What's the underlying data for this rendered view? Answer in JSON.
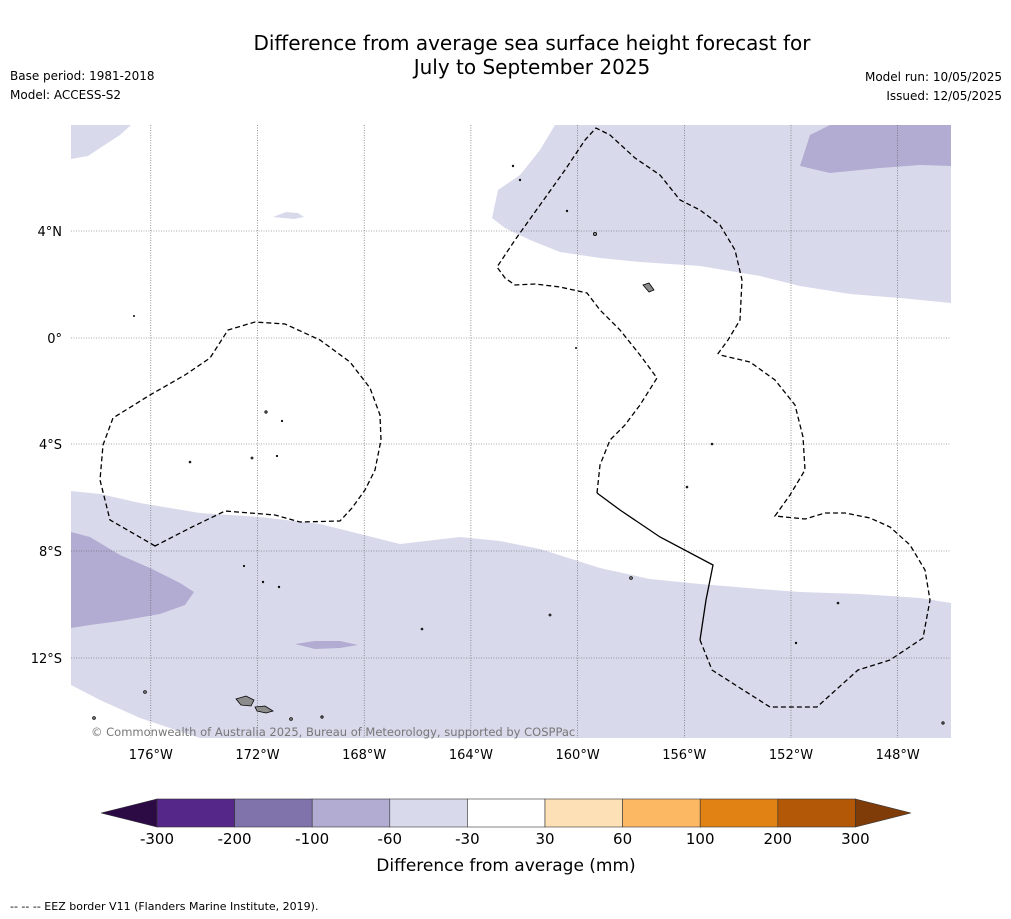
{
  "title": {
    "line1": "Difference from average sea surface height forecast for",
    "line2": "July to September 2025"
  },
  "meta_left": {
    "base_period": "Base period: 1981-2018",
    "model": "Model: ACCESS-S2"
  },
  "meta_right": {
    "model_run": "Model run: 10/05/2025",
    "issued": "Issued: 12/05/2025"
  },
  "map": {
    "lon_range": [
      -179,
      -146
    ],
    "lat_range": [
      -15,
      8
    ],
    "lon_ticks": [
      {
        "value": -176,
        "label": "176°W"
      },
      {
        "value": -172,
        "label": "172°W"
      },
      {
        "value": -168,
        "label": "168°W"
      },
      {
        "value": -164,
        "label": "164°W"
      },
      {
        "value": -160,
        "label": "160°W"
      },
      {
        "value": -156,
        "label": "156°W"
      },
      {
        "value": -152,
        "label": "152°W"
      },
      {
        "value": -148,
        "label": "148°W"
      }
    ],
    "lat_ticks": [
      {
        "value": 4,
        "label": "4°N"
      },
      {
        "value": 0,
        "label": "0°"
      },
      {
        "value": -4,
        "label": "4°S"
      },
      {
        "value": -8,
        "label": "8°S"
      },
      {
        "value": -12,
        "label": "12°S"
      }
    ],
    "copyright": "© Commonwealth of Australia 2025, Bureau of Meteorology, supported by COSPPac",
    "grid": true
  },
  "colorbar": {
    "label": "Difference from average (mm)",
    "ticks": [
      "-300",
      "-200",
      "-100",
      "-60",
      "-30",
      "30",
      "60",
      "100",
      "200",
      "300"
    ],
    "under_color": "#2c0b45",
    "over_color": "#7f3b08",
    "colors": [
      "#542788",
      "#8073ac",
      "#b2abd2",
      "#d8daeb",
      "#ffffff",
      "#fee0b6",
      "#fdb863",
      "#e08214",
      "#b35806"
    ]
  },
  "colors": {
    "band_light": "#d8daeb",
    "band_mid": "#b2abd2",
    "land": "#8c8c8c",
    "gridline": "#555555"
  },
  "footnote": "--  --  -- EEZ border V11 (Flanders Marine Institute, 2019)."
}
